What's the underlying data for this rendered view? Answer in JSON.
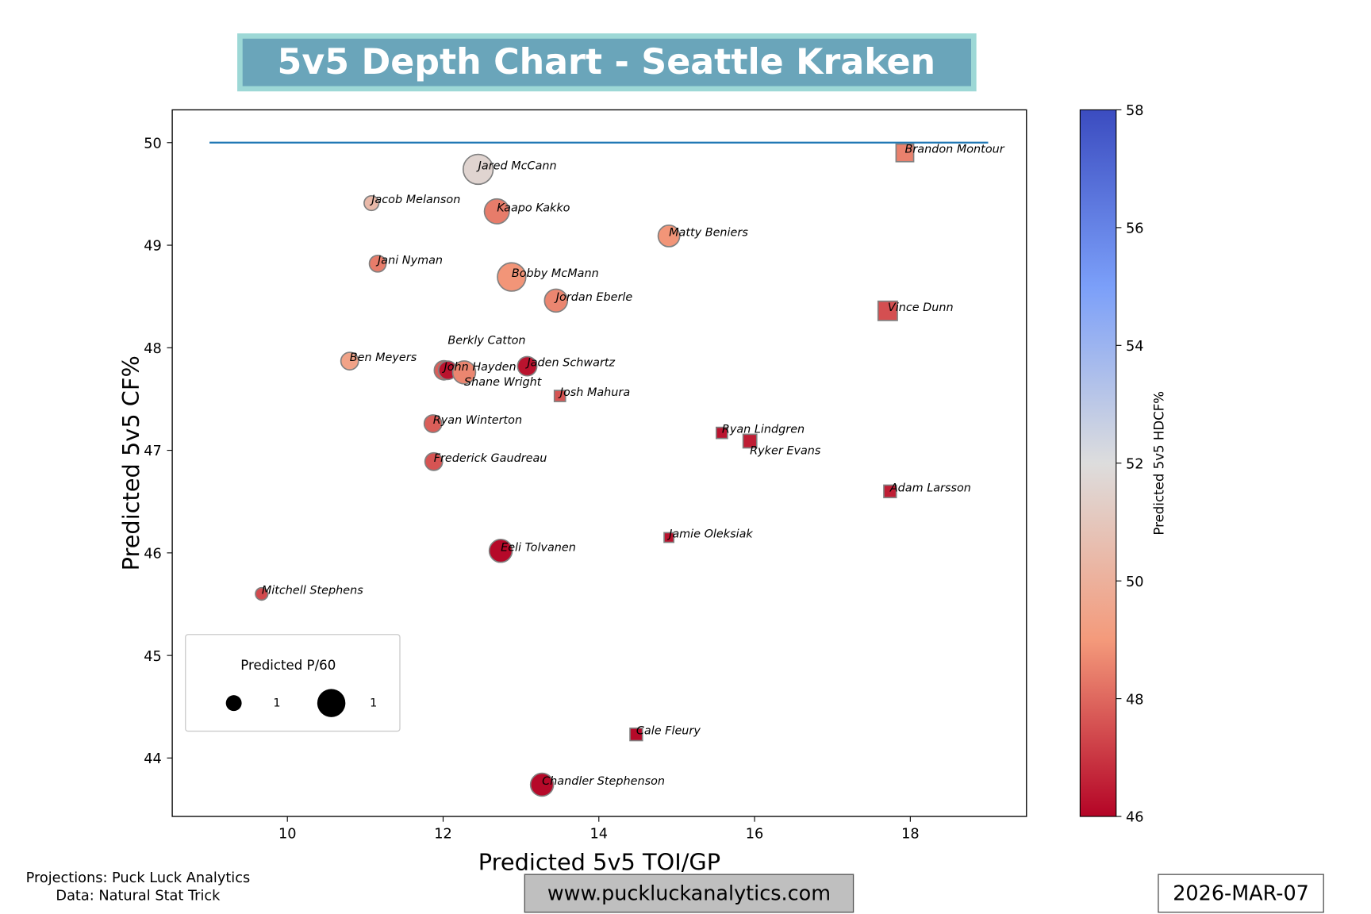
{
  "title": "5v5 Depth Chart - Seattle Kraken",
  "footer": {
    "projections": "Projections: Puck Luck Analytics",
    "data_source": "Data: Natural Stat Trick",
    "website": "www.puckluckanalytics.com",
    "date": "2026-MAR-07"
  },
  "colors": {
    "title_bg": "#6aa5ba",
    "title_border": "#9dd8d6",
    "reference_line": "#1f77b4",
    "website_bg": "#bfbfbf"
  },
  "chart_data": {
    "type": "scatter",
    "xlabel": "Predicted 5v5 TOI/GP",
    "ylabel": "Predicted 5v5 CF%",
    "xlim": [
      8.5,
      19.5
    ],
    "ylim": [
      43.4,
      50.3
    ],
    "xticks": [
      "10",
      "12",
      "14",
      "16",
      "18"
    ],
    "yticks": [
      "44",
      "45",
      "46",
      "47",
      "48",
      "49",
      "50"
    ],
    "grid": false,
    "reference_line": {
      "y": 50,
      "x_from": 9,
      "x_to": 19
    },
    "size_legend": {
      "title": "Predicted P/60",
      "entries": [
        "1",
        "1"
      ],
      "placement": "top-left"
    },
    "colorbar": {
      "label": "Predicted 5v5 HDCF%",
      "range": [
        46,
        58
      ],
      "ticks": [
        "46",
        "48",
        "50",
        "52",
        "54",
        "56",
        "58"
      ],
      "colormap": "coolwarm_r"
    },
    "markers": {
      "forward": "circle",
      "defense": "square"
    },
    "points": [
      {
        "name": "Jared McCann",
        "pos": "F",
        "toi": 12.45,
        "cf": 49.74,
        "hdcf": 51.6,
        "p60": 2.9
      },
      {
        "name": "Jacob Melanson",
        "pos": "F",
        "toi": 11.08,
        "cf": 49.41,
        "hdcf": 50.4,
        "p60": 0.7
      },
      {
        "name": "Kaapo Kakko",
        "pos": "F",
        "toi": 12.69,
        "cf": 49.33,
        "hdcf": 48.4,
        "p60": 2.0
      },
      {
        "name": "Matty Beniers",
        "pos": "F",
        "toi": 14.9,
        "cf": 49.09,
        "hdcf": 48.9,
        "p60": 1.5
      },
      {
        "name": "Jani Nyman",
        "pos": "F",
        "toi": 11.16,
        "cf": 48.82,
        "hdcf": 48.4,
        "p60": 0.9
      },
      {
        "name": "Bobby McMann",
        "pos": "F",
        "toi": 12.88,
        "cf": 48.69,
        "hdcf": 48.9,
        "p60": 2.6
      },
      {
        "name": "Jordan Eberle",
        "pos": "F",
        "toi": 13.45,
        "cf": 48.46,
        "hdcf": 48.6,
        "p60": 1.7
      },
      {
        "name": "Ben Meyers",
        "pos": "F",
        "toi": 10.8,
        "cf": 47.87,
        "hdcf": 49.4,
        "p60": 1.0
      },
      {
        "name": "John Hayden",
        "pos": "F",
        "toi": 12.01,
        "cf": 47.78,
        "hdcf": 47.8,
        "p60": 1.2
      },
      {
        "name": "Berkly Catton",
        "pos": "F",
        "toi": 12.06,
        "cf": 47.78,
        "hdcf": 46.3,
        "p60": 1.1
      },
      {
        "name": "Shane Wright",
        "pos": "F",
        "toi": 12.27,
        "cf": 47.76,
        "hdcf": 48.6,
        "p60": 1.7
      },
      {
        "name": "Jaden Schwartz",
        "pos": "F",
        "toi": 13.08,
        "cf": 47.82,
        "hdcf": 46.3,
        "p60": 1.2
      },
      {
        "name": "Ryan Winterton",
        "pos": "F",
        "toi": 11.87,
        "cf": 47.26,
        "hdcf": 47.8,
        "p60": 1.0
      },
      {
        "name": "Frederick Gaudreau",
        "pos": "F",
        "toi": 11.88,
        "cf": 46.89,
        "hdcf": 47.6,
        "p60": 1.0
      },
      {
        "name": "Eeli Tolvanen",
        "pos": "F",
        "toi": 12.74,
        "cf": 46.02,
        "hdcf": 46.1,
        "p60": 1.7
      },
      {
        "name": "Mitchell Stephens",
        "pos": "F",
        "toi": 9.67,
        "cf": 45.6,
        "hdcf": 47.4,
        "p60": 0.5
      },
      {
        "name": "Chandler Stephenson",
        "pos": "F",
        "toi": 13.27,
        "cf": 43.74,
        "hdcf": 46.1,
        "p60": 1.7
      },
      {
        "name": "Brandon Montour",
        "pos": "D",
        "toi": 17.93,
        "cf": 49.9,
        "hdcf": 48.5,
        "p60": 1.0
      },
      {
        "name": "Vince Dunn",
        "pos": "D",
        "toi": 17.71,
        "cf": 48.36,
        "hdcf": 47.5,
        "p60": 1.2
      },
      {
        "name": "Josh Mahura",
        "pos": "D",
        "toi": 13.5,
        "cf": 47.53,
        "hdcf": 47.6,
        "p60": 0.4
      },
      {
        "name": "Ryan Lindgren",
        "pos": "D",
        "toi": 15.58,
        "cf": 47.17,
        "hdcf": 46.3,
        "p60": 0.4
      },
      {
        "name": "Ryker Evans",
        "pos": "D",
        "toi": 15.94,
        "cf": 47.09,
        "hdcf": 46.5,
        "p60": 0.6
      },
      {
        "name": "Adam Larsson",
        "pos": "D",
        "toi": 17.74,
        "cf": 46.6,
        "hdcf": 46.5,
        "p60": 0.5
      },
      {
        "name": "Jamie Oleksiak",
        "pos": "D",
        "toi": 14.9,
        "cf": 46.15,
        "hdcf": 46.3,
        "p60": 0.3
      },
      {
        "name": "Cale Fleury",
        "pos": "D",
        "toi": 14.48,
        "cf": 44.23,
        "hdcf": 46.1,
        "p60": 0.5
      }
    ]
  }
}
